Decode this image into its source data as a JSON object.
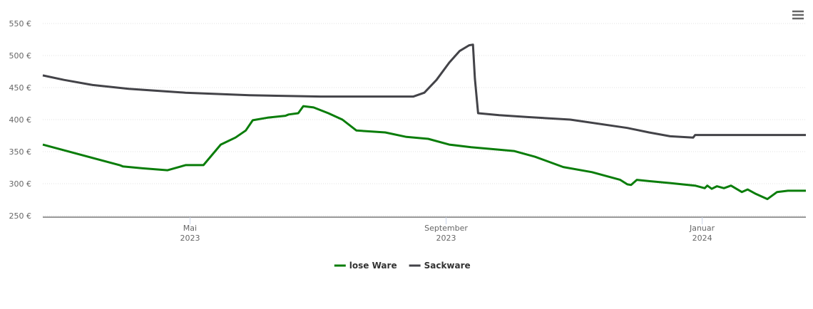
{
  "chart_data": {
    "type": "line",
    "xlim": [
      1.7,
      13.62
    ],
    "xticks": [
      {
        "value": 4,
        "label": "Mai 2023"
      },
      {
        "value": 8,
        "label": "September 2023"
      },
      {
        "value": 12,
        "label": "Januar 2024"
      }
    ],
    "ylim": [
      250,
      550
    ],
    "yticks": [
      {
        "value": 250,
        "label": "250 €"
      },
      {
        "value": 300,
        "label": "300 €"
      },
      {
        "value": 350,
        "label": "350 €"
      },
      {
        "value": 400,
        "label": "400 €"
      },
      {
        "value": 450,
        "label": "450 €"
      },
      {
        "value": 500,
        "label": "500 €"
      },
      {
        "value": 550,
        "label": "550 €"
      }
    ],
    "grid": true,
    "legend": "bottom",
    "series": [
      {
        "name": "lose Ware",
        "color": "#0a7d0a",
        "x": [
          1.7,
          2.9,
          2.95,
          3.26,
          3.65,
          3.93,
          4.21,
          4.48,
          4.71,
          4.87,
          4.98,
          5.21,
          5.49,
          5.54,
          5.69,
          5.77,
          5.93,
          6.16,
          6.38,
          6.6,
          7.05,
          7.38,
          7.72,
          8.05,
          8.39,
          8.83,
          9.06,
          9.39,
          9.83,
          10.28,
          10.5,
          10.72,
          10.83,
          10.89,
          10.98,
          11.17,
          11.5,
          11.89,
          12.04,
          12.08,
          12.15,
          12.23,
          12.34,
          12.45,
          12.62,
          12.71,
          12.84,
          13.02,
          13.17,
          13.34,
          13.62
        ],
        "values": [
          361,
          329,
          327,
          324,
          321,
          329,
          329,
          361,
          372,
          383,
          399,
          403,
          406,
          408,
          410,
          421,
          419,
          410,
          400,
          383,
          380,
          373,
          370,
          361,
          357,
          353,
          351,
          342,
          326,
          318,
          312,
          306,
          299,
          298,
          306,
          304,
          301,
          297,
          293,
          297,
          292,
          296,
          293,
          297,
          287,
          291,
          284,
          276,
          287,
          289,
          289
        ]
      },
      {
        "name": "Sackware",
        "color": "#434348",
        "x": [
          1.7,
          2.03,
          2.48,
          3.04,
          3.93,
          4.93,
          6.04,
          7.49,
          7.66,
          7.85,
          8.05,
          8.21,
          8.36,
          8.42,
          8.45,
          8.5,
          8.83,
          9.27,
          9.94,
          10.83,
          11.17,
          11.5,
          11.86,
          11.89,
          13.62
        ],
        "values": [
          469,
          462,
          454,
          448,
          442,
          438,
          436,
          436,
          442,
          462,
          489,
          507,
          516,
          517,
          464,
          410,
          407,
          404,
          400,
          387,
          380,
          374,
          372,
          376,
          376
        ]
      }
    ]
  }
}
